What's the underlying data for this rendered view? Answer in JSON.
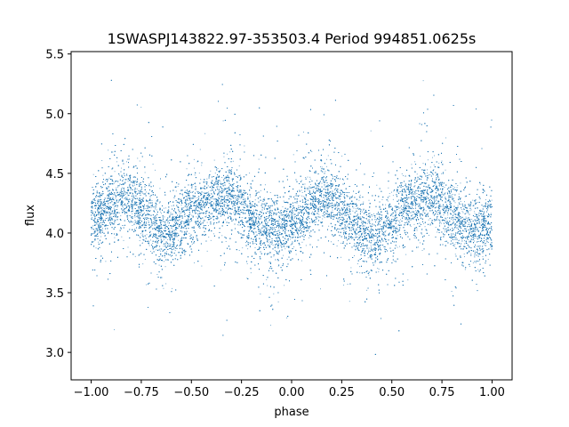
{
  "chart_data": {
    "type": "scatter",
    "title": "1SWASPJ143822.97-353503.4 Period 994851.0625s",
    "xlabel": "phase",
    "ylabel": "flux",
    "xlim": [
      -1.1,
      1.1
    ],
    "ylim": [
      2.77,
      5.52
    ],
    "x_ticks": [
      -1.0,
      -0.75,
      -0.5,
      -0.25,
      0.0,
      0.25,
      0.5,
      0.75,
      1.0
    ],
    "x_tick_labels": [
      "−1.00",
      "−0.75",
      "−0.50",
      "−0.25",
      "0.00",
      "0.25",
      "0.50",
      "0.75",
      "1.00"
    ],
    "y_ticks": [
      3.0,
      3.5,
      4.0,
      4.5,
      5.0,
      5.5
    ],
    "y_tick_labels": [
      "3.0",
      "3.5",
      "4.0",
      "4.5",
      "5.0",
      "5.5"
    ],
    "grid": false,
    "marker_color": "#1f77b4",
    "series": [
      {
        "profile_phase": [
          -1.0,
          -0.95,
          -0.9,
          -0.85,
          -0.8,
          -0.75,
          -0.7,
          -0.65,
          -0.6,
          -0.55,
          -0.5,
          -0.45,
          -0.4,
          -0.35,
          -0.3,
          -0.25,
          -0.2,
          -0.15,
          -0.1,
          -0.05,
          0.0,
          0.05,
          0.1,
          0.15,
          0.2,
          0.25,
          0.3,
          0.35,
          0.4,
          0.45,
          0.5,
          0.55,
          0.6,
          0.65,
          0.7,
          0.75,
          0.8,
          0.85,
          0.9,
          0.95,
          1.0
        ],
        "profile_flux": [
          4.1,
          4.17,
          4.25,
          4.3,
          4.27,
          4.2,
          4.1,
          4.0,
          4.02,
          4.1,
          4.17,
          4.22,
          4.27,
          4.32,
          4.3,
          4.2,
          4.1,
          4.07,
          4.03,
          4.02,
          4.05,
          4.13,
          4.22,
          4.3,
          4.27,
          4.2,
          4.1,
          4.02,
          3.95,
          4.0,
          4.08,
          4.17,
          4.22,
          4.27,
          4.3,
          4.25,
          4.15,
          4.07,
          4.05,
          4.05,
          4.1
        ],
        "flux_min": 2.9,
        "flux_max": 5.35
      }
    ]
  }
}
